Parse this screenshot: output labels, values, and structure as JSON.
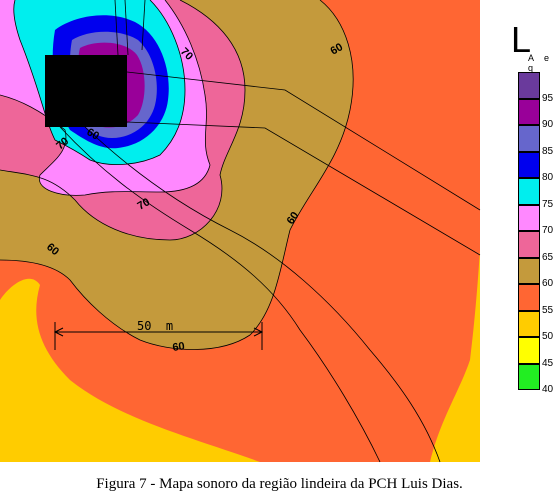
{
  "legend": {
    "title": "L",
    "subscript": "A e q",
    "levels": [
      {
        "value": "95",
        "color": "#6a3a9c"
      },
      {
        "value": "90",
        "color": "#990099"
      },
      {
        "value": "85",
        "color": "#6666cc"
      },
      {
        "value": "80",
        "color": "#0000ee"
      },
      {
        "value": "75",
        "color": "#00eeee"
      },
      {
        "value": "70",
        "color": "#ff88ff"
      },
      {
        "value": "65",
        "color": "#ee6699"
      },
      {
        "value": "60",
        "color": "#c49a3c"
      },
      {
        "value": "55",
        "color": "#ff6633"
      },
      {
        "value": "50",
        "color": "#ffcc00"
      },
      {
        "value": "45",
        "color": "#ffff00"
      },
      {
        "value": "40",
        "color": "#22ee22"
      }
    ],
    "bottom_value": "40"
  },
  "contour_labels": {
    "c70_top": "70",
    "c70_left": "70",
    "c70_bottom": "70",
    "c60_top": "60",
    "c60_right": "60",
    "c60_left": "60",
    "c60_bottom": "60",
    "c60_source": "60"
  },
  "scale_bar": {
    "label": "50  m"
  },
  "caption": "Figura 7 - Mapa sonoro da região lindeira da PCH Luis Dias."
}
